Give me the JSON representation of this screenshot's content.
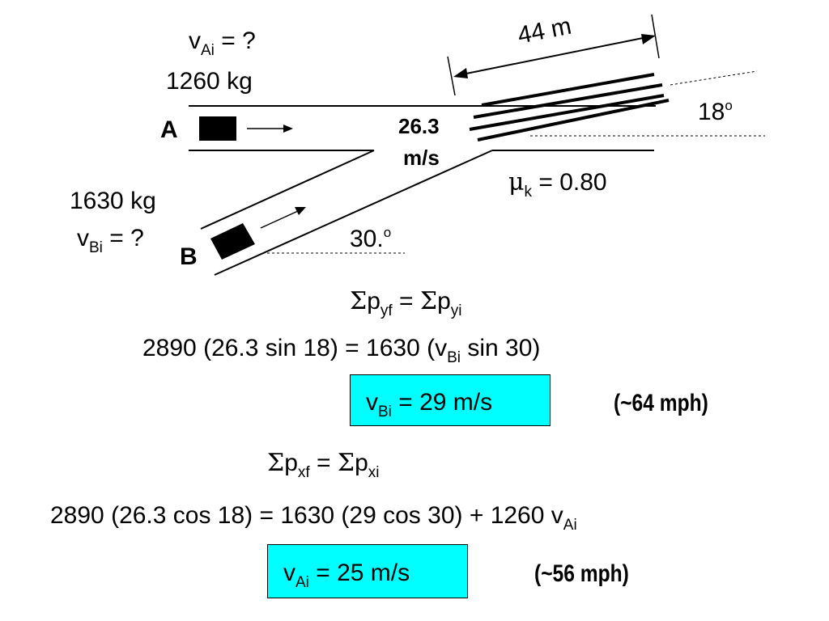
{
  "diagram": {
    "car_a": {
      "velocity_symbol": "v",
      "velocity_subscript": "Ai",
      "velocity_value": " = ?",
      "mass": "1260 kg",
      "label": "A"
    },
    "car_b": {
      "mass": "1630 kg",
      "velocity_symbol": "v",
      "velocity_subscript": "Bi",
      "velocity_value": " = ?",
      "label": "B"
    },
    "final_speed_line1": "26.3",
    "final_speed_line2": "m/s",
    "skid_distance": "44 m",
    "exit_angle": "18",
    "exit_angle_degree": "o",
    "friction_symbol": "μ",
    "friction_subscript": "k",
    "friction_value": " = 0.80",
    "approach_angle": "30.",
    "approach_angle_degree": "o"
  },
  "equations": {
    "y_momentum": {
      "sigma1": "Σ",
      "p1": "p",
      "sub1": "yf",
      "eq": " = ",
      "sigma2": "Σ",
      "p2": "p",
      "sub2": "yi"
    },
    "y_substitution": {
      "left": "2890 (26.3 sin 18) = 1630 (v",
      "sub": "Bi",
      "right": " sin 30)"
    },
    "vb_result": {
      "symbol": "v",
      "sub": "Bi",
      "value": " = 29 m/s",
      "mph": "(~64 mph)"
    },
    "x_momentum": {
      "sigma1": "Σ",
      "p1": "p",
      "sub1": "xf",
      "eq": " = ",
      "sigma2": "Σ",
      "p2": "p",
      "sub2": "xi"
    },
    "x_substitution": {
      "left": "2890 (26.3 cos 18) = 1630 (29 cos 30) + 1260 v",
      "sub": "Ai"
    },
    "va_result": {
      "symbol": "v",
      "sub": "Ai",
      "value": " = 25 m/s",
      "mph": "(~56 mph)"
    }
  },
  "colors": {
    "answer_box": "#00ffff",
    "ink": "#000000"
  }
}
